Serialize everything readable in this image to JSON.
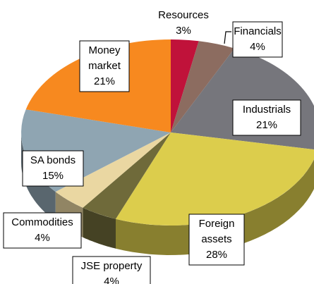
{
  "chart_data": {
    "type": "pie",
    "categories": [
      "Resources",
      "Financials",
      "Industrials",
      "Foreign assets",
      "JSE property",
      "Commodities",
      "SA bonds",
      "Money market"
    ],
    "values": [
      3,
      4,
      21,
      28,
      4,
      4,
      15,
      21
    ],
    "value_labels": [
      "3%",
      "4%",
      "21%",
      "28%",
      "4%",
      "4%",
      "15%",
      "21%"
    ],
    "colors": [
      "#c0123a",
      "#8c6c60",
      "#76767c",
      "#dccd4c",
      "#6f6a3a",
      "#ead7a2",
      "#8fa5b2",
      "#f7891f"
    ]
  }
}
